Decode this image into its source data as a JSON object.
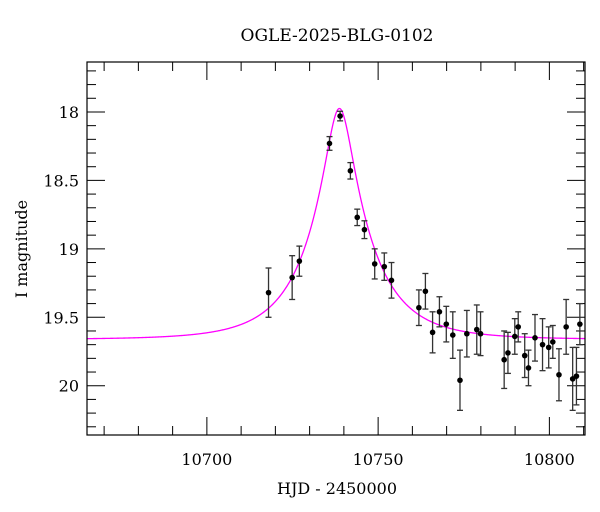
{
  "chart_data": {
    "type": "scatter",
    "title": "OGLE-2025-BLG-0102",
    "xlabel": "HJD - 2450000",
    "ylabel": "I magnitude",
    "xlim": [
      10665,
      10810.4
    ],
    "ylim": [
      20.36,
      17.635
    ],
    "y_inverted": true,
    "x_ticks": [
      10700,
      10750,
      10800
    ],
    "x_tick_labels": [
      "10700",
      "10750",
      "10800"
    ],
    "x_minor_step": 10,
    "y_ticks": [
      18,
      18.5,
      19,
      19.5,
      20
    ],
    "y_tick_labels": [
      "18",
      "18.5",
      "19",
      "19.5",
      "20"
    ],
    "y_minor_step": 0.1,
    "grid": false,
    "colors": {
      "points": "#000000",
      "errorbars": "#333333",
      "model": "#ff00ff"
    },
    "series": [
      {
        "name": "data",
        "points": [
          {
            "x": 10718.0,
            "y": 19.32,
            "err": 0.18
          },
          {
            "x": 10724.9,
            "y": 19.21,
            "err": 0.16
          },
          {
            "x": 10727.0,
            "y": 19.09,
            "err": 0.11
          },
          {
            "x": 10735.8,
            "y": 18.23,
            "err": 0.05
          },
          {
            "x": 10738.9,
            "y": 18.03,
            "err": 0.035
          },
          {
            "x": 10741.9,
            "y": 18.43,
            "err": 0.06
          },
          {
            "x": 10743.9,
            "y": 18.77,
            "err": 0.06
          },
          {
            "x": 10746.0,
            "y": 18.86,
            "err": 0.065
          },
          {
            "x": 10749.0,
            "y": 19.11,
            "err": 0.11
          },
          {
            "x": 10751.8,
            "y": 19.13,
            "err": 0.1
          },
          {
            "x": 10753.9,
            "y": 19.23,
            "err": 0.13
          },
          {
            "x": 10761.9,
            "y": 19.43,
            "err": 0.13
          },
          {
            "x": 10763.8,
            "y": 19.31,
            "err": 0.13
          },
          {
            "x": 10765.9,
            "y": 19.61,
            "err": 0.15
          },
          {
            "x": 10767.9,
            "y": 19.46,
            "err": 0.11
          },
          {
            "x": 10769.9,
            "y": 19.55,
            "err": 0.13
          },
          {
            "x": 10771.8,
            "y": 19.63,
            "err": 0.17
          },
          {
            "x": 10773.9,
            "y": 19.96,
            "err": 0.22
          },
          {
            "x": 10775.9,
            "y": 19.62,
            "err": 0.17
          },
          {
            "x": 10778.8,
            "y": 19.59,
            "err": 0.18
          },
          {
            "x": 10779.9,
            "y": 19.62,
            "err": 0.16
          },
          {
            "x": 10786.8,
            "y": 19.81,
            "err": 0.21
          },
          {
            "x": 10787.9,
            "y": 19.76,
            "err": 0.15
          },
          {
            "x": 10789.9,
            "y": 19.64,
            "err": 0.13
          },
          {
            "x": 10790.9,
            "y": 19.57,
            "err": 0.11
          },
          {
            "x": 10792.8,
            "y": 19.78,
            "err": 0.16
          },
          {
            "x": 10793.9,
            "y": 19.87,
            "err": 0.13
          },
          {
            "x": 10795.8,
            "y": 19.65,
            "err": 0.17
          },
          {
            "x": 10798.0,
            "y": 19.7,
            "err": 0.19
          },
          {
            "x": 10799.8,
            "y": 19.72,
            "err": 0.15
          },
          {
            "x": 10801.0,
            "y": 19.68,
            "err": 0.12
          },
          {
            "x": 10802.8,
            "y": 19.92,
            "err": 0.19
          },
          {
            "x": 10804.9,
            "y": 19.57,
            "err": 0.2
          },
          {
            "x": 10806.8,
            "y": 19.95,
            "err": 0.23
          },
          {
            "x": 10807.9,
            "y": 19.93,
            "err": 0.21
          },
          {
            "x": 10808.9,
            "y": 19.55,
            "err": 0.15
          }
        ]
      }
    ],
    "model": {
      "name": "model",
      "kind": "point-lens",
      "t0": 10738.7,
      "u0": 0.215,
      "tE": 17.7,
      "baseline_mag": 19.662
    }
  }
}
